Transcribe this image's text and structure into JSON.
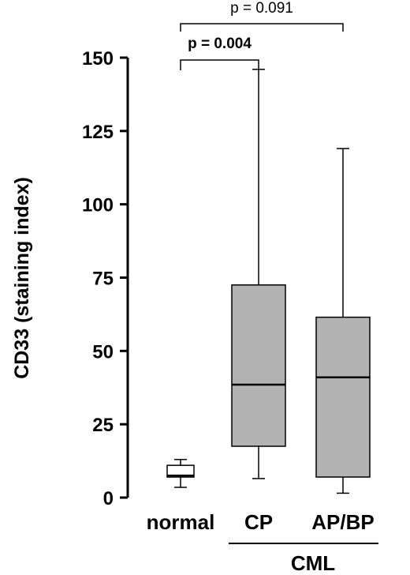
{
  "chart_data": {
    "type": "box",
    "ylabel": "CD33 (staining index)",
    "ylim": [
      0,
      150
    ],
    "yticks": [
      0,
      25,
      50,
      75,
      100,
      125,
      150
    ],
    "categories": [
      "normal",
      "CP",
      "AP/BP"
    ],
    "group_label": "CML",
    "grouped_categories": [
      "CP",
      "AP/BP"
    ],
    "boxes": [
      {
        "category": "normal",
        "min": 3.5,
        "q1": 7,
        "median": 7.5,
        "q3": 11,
        "max": 13,
        "fill": "#ffffff"
      },
      {
        "category": "CP",
        "min": 6.5,
        "q1": 17.5,
        "median": 38.5,
        "q3": 72.5,
        "max": 146,
        "fill": "#b3b3b3"
      },
      {
        "category": "AP/BP",
        "min": 1.5,
        "q1": 7,
        "median": 41,
        "q3": 61.5,
        "max": 119,
        "fill": "#b3b3b3"
      }
    ],
    "comparisons": [
      {
        "from": "normal",
        "to": "CP",
        "label": "p = 0.004",
        "bold": true
      },
      {
        "from": "normal",
        "to": "AP/BP",
        "label": "p = 0.091",
        "bold": false
      }
    ]
  }
}
